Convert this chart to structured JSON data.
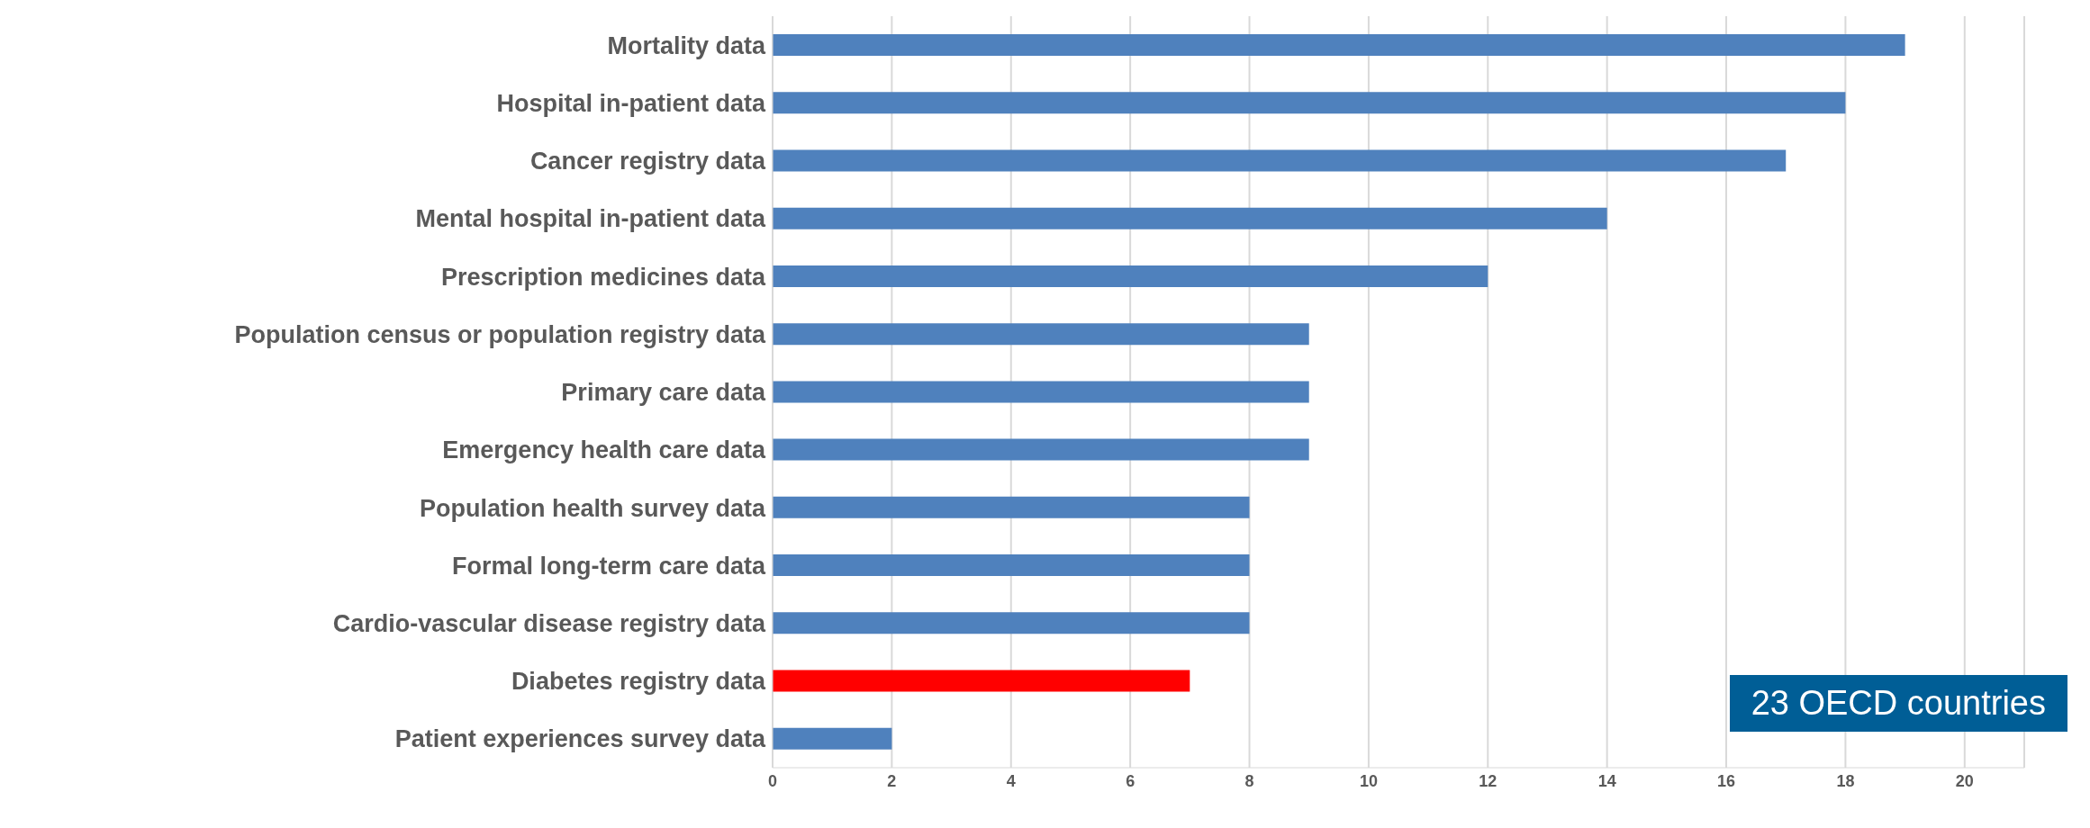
{
  "chart_data": {
    "type": "bar",
    "orientation": "horizontal",
    "categories": [
      "Mortality data",
      "Hospital in-patient data",
      "Cancer registry data",
      "Mental hospital in-patient data",
      "Prescription medicines data",
      "Population census or population registry data",
      "Primary care data ",
      "Emergency health care data",
      "Population health survey data",
      "Formal long-term care data",
      "Cardio-vascular disease registry data",
      "Diabetes registry data",
      "Patient experiences  survey data"
    ],
    "values": [
      19,
      18,
      17,
      14,
      12,
      9,
      9,
      9,
      8,
      8,
      8,
      7,
      2
    ],
    "colors": [
      "#4f81bd",
      "#4f81bd",
      "#4f81bd",
      "#4f81bd",
      "#4f81bd",
      "#4f81bd",
      "#4f81bd",
      "#4f81bd",
      "#4f81bd",
      "#4f81bd",
      "#4f81bd",
      "#ff0000",
      "#4f81bd"
    ],
    "xlim": [
      0,
      21
    ],
    "xticks": [
      0,
      2,
      4,
      6,
      8,
      10,
      12,
      14,
      16,
      18,
      20
    ],
    "grid": "x",
    "annotations": [
      "23 OECD countries"
    ]
  }
}
